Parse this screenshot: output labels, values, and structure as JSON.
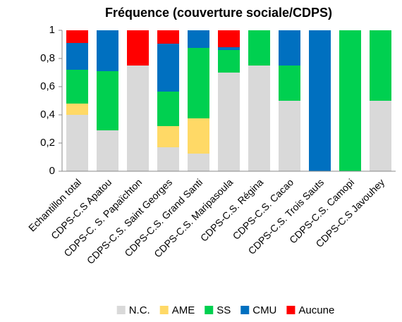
{
  "chart_data": {
    "type": "stacked_bar",
    "title": "Fréquence (couverture sociale/CDPS)",
    "categories": [
      "Echantillon total",
      "CDPS-C.S Apatou",
      "CDPS-C. S. Papaïchton",
      "CDPS-C.S. Saint Georges",
      "CDPS-C.S. Grand Santi",
      "CDPS-C.S. Maripasoula",
      "CDPS-C.S. Régina",
      "CDPS-C.S. Cacao",
      "CDPS-C.S. Trois Sauts",
      "CDPS-C.S. Camopi",
      "CDPS-C.S Javouhey"
    ],
    "series": [
      {
        "name": "N.C.",
        "color": "#d9d9d9",
        "values": [
          0.4,
          0.29,
          0.75,
          0.17,
          0.125,
          0.7,
          0.75,
          0.5,
          0,
          0,
          0.5
        ]
      },
      {
        "name": "AME",
        "color": "#ffd966",
        "values": [
          0.08,
          0,
          0,
          0.15,
          0.25,
          0,
          0,
          0,
          0,
          0,
          0
        ]
      },
      {
        "name": "SS",
        "color": "#00d050",
        "values": [
          0.24,
          0.42,
          0,
          0.245,
          0.5,
          0.16,
          0.25,
          0.25,
          0,
          1,
          0.5
        ]
      },
      {
        "name": "CMU",
        "color": "#0070c0",
        "values": [
          0.19,
          0.29,
          0,
          0.34,
          0.125,
          0.02,
          0,
          0.25,
          1,
          0,
          0
        ]
      },
      {
        "name": "Aucune",
        "color": "#ff0000",
        "values": [
          0.09,
          0,
          0.25,
          0.095,
          0,
          0.12,
          0,
          0,
          0,
          0,
          0
        ]
      }
    ],
    "ylim": [
      0,
      1
    ],
    "yticks": [
      0,
      {
        "value": 0.2,
        "label": "0,2"
      },
      {
        "value": 0.4,
        "label": "0,4"
      },
      {
        "value": 0.6,
        "label": "0,6"
      },
      {
        "value": 0.8,
        "label": "0,8"
      },
      1
    ],
    "grid": false,
    "legend": "bottom"
  }
}
